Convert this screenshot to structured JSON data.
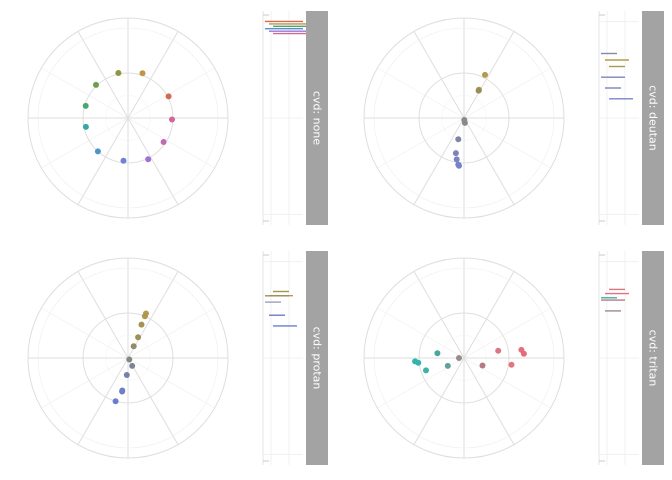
{
  "chart_data": {
    "type": "scatter",
    "coord": "polar",
    "grid": true,
    "legend": "none",
    "panels": [
      {
        "strip_label": "cvd: none",
        "points": [
          {
            "angle_deg": 102,
            "r": 0.46,
            "color": "#8f9441"
          },
          {
            "angle_deg": 72,
            "r": 0.47,
            "color": "#c39447"
          },
          {
            "angle_deg": 28,
            "r": 0.46,
            "color": "#d36b52"
          },
          {
            "angle_deg": -2,
            "r": 0.44,
            "color": "#d1689c"
          },
          {
            "angle_deg": -34,
            "r": 0.43,
            "color": "#c16ab4"
          },
          {
            "angle_deg": -64,
            "r": 0.46,
            "color": "#a171d4"
          },
          {
            "angle_deg": -96,
            "r": 0.43,
            "color": "#6e82d6"
          },
          {
            "angle_deg": -132,
            "r": 0.45,
            "color": "#4d95c5"
          },
          {
            "angle_deg": -168,
            "r": 0.43,
            "color": "#38a5a8"
          },
          {
            "angle_deg": 164,
            "r": 0.44,
            "color": "#4aa771"
          },
          {
            "angle_deg": 134,
            "r": 0.46,
            "color": "#6b9f4d"
          }
        ],
        "side_bars": [
          {
            "value": 0.97,
            "color": "#d36b52"
          },
          {
            "value": 0.96,
            "color": "#c39447"
          },
          {
            "value": 0.95,
            "color": "#4aa771"
          },
          {
            "value": 0.94,
            "color": "#4d95c5"
          },
          {
            "value": 0.93,
            "color": "#a171d4"
          },
          {
            "value": 0.92,
            "color": "#d1689c"
          }
        ]
      },
      {
        "strip_label": "cvd: deutan",
        "points": [
          {
            "angle_deg": 64,
            "r": 0.48,
            "color": "#b59b4a"
          },
          {
            "angle_deg": 62,
            "r": 0.32,
            "color": "#a89a55"
          },
          {
            "angle_deg": 62,
            "r": 0.31,
            "color": "#9a8d55"
          },
          {
            "angle_deg": -80,
            "r": 0.02,
            "color": "#8a8a86"
          },
          {
            "angle_deg": -80,
            "r": 0.05,
            "color": "#8a8a8a"
          },
          {
            "angle_deg": -105,
            "r": 0.22,
            "color": "#7e86a8"
          },
          {
            "angle_deg": -103,
            "r": 0.36,
            "color": "#7c84b8"
          },
          {
            "angle_deg": -100,
            "r": 0.42,
            "color": "#7c84c0"
          },
          {
            "angle_deg": -97,
            "r": 0.47,
            "color": "#7883cb"
          },
          {
            "angle_deg": -96,
            "r": 0.48,
            "color": "#7581d2"
          }
        ],
        "side_bars": [
          {
            "value": 0.82,
            "color": "#8a86a8"
          },
          {
            "value": 0.8,
            "color": "#b59b4a"
          },
          {
            "value": 0.78,
            "color": "#a89a55"
          },
          {
            "value": 0.74,
            "color": "#7c84b8"
          },
          {
            "value": 0.7,
            "color": "#7c84c0"
          },
          {
            "value": 0.66,
            "color": "#7883cb"
          }
        ]
      },
      {
        "strip_label": "cvd: protan",
        "points": [
          {
            "angle_deg": 68,
            "r": 0.48,
            "color": "#b79a4f"
          },
          {
            "angle_deg": 68,
            "r": 0.45,
            "color": "#b0974c"
          },
          {
            "angle_deg": 68,
            "r": 0.36,
            "color": "#a5944f"
          },
          {
            "angle_deg": 64,
            "r": 0.23,
            "color": "#9d9155"
          },
          {
            "angle_deg": 64,
            "r": 0.13,
            "color": "#8f8d6c"
          },
          {
            "angle_deg": -50,
            "r": 0.02,
            "color": "#858686"
          },
          {
            "angle_deg": -62,
            "r": 0.09,
            "color": "#7e8498"
          },
          {
            "angle_deg": -94,
            "r": 0.17,
            "color": "#7682ab"
          },
          {
            "angle_deg": -100,
            "r": 0.33,
            "color": "#6f7ec5"
          },
          {
            "angle_deg": -100,
            "r": 0.34,
            "color": "#6f7fc9"
          },
          {
            "angle_deg": -106,
            "r": 0.45,
            "color": "#6d7cd0"
          }
        ],
        "side_bars": [
          {
            "value": 0.78,
            "color": "#9ca0c0"
          },
          {
            "value": 0.82,
            "color": "#b79a4f"
          },
          {
            "value": 0.85,
            "color": "#a5944f"
          },
          {
            "value": 0.84,
            "color": "#9d9155"
          },
          {
            "value": 0.76,
            "color": "#6f7ec5"
          },
          {
            "value": 0.72,
            "color": "#6d7cd0"
          }
        ]
      },
      {
        "strip_label": "cvd: tritan",
        "points": [
          {
            "angle_deg": 12,
            "r": 0.35,
            "color": "#d97882"
          },
          {
            "angle_deg": 8,
            "r": 0.58,
            "color": "#e3707c"
          },
          {
            "angle_deg": 4,
            "r": 0.6,
            "color": "#e46c78"
          },
          {
            "angle_deg": -8,
            "r": 0.48,
            "color": "#e27680"
          },
          {
            "angle_deg": -22,
            "r": 0.2,
            "color": "#b57a86"
          },
          {
            "angle_deg": 180,
            "r": 0.05,
            "color": "#9a8c8a"
          },
          {
            "angle_deg": -154,
            "r": 0.18,
            "color": "#64a098"
          },
          {
            "angle_deg": 170,
            "r": 0.27,
            "color": "#4aa6a2"
          },
          {
            "angle_deg": -162,
            "r": 0.4,
            "color": "#3cb2a8"
          },
          {
            "angle_deg": -174,
            "r": 0.46,
            "color": "#31b6ad"
          },
          {
            "angle_deg": -176,
            "r": 0.49,
            "color": "#30b4ae"
          }
        ],
        "side_bars": [
          {
            "value": 0.8,
            "color": "#3cb2a8"
          },
          {
            "value": 0.83,
            "color": "#e3707c"
          },
          {
            "value": 0.86,
            "color": "#d97882"
          },
          {
            "value": 0.82,
            "color": "#b57a86"
          },
          {
            "value": 0.78,
            "color": "#9a8c8a"
          }
        ]
      }
    ]
  }
}
